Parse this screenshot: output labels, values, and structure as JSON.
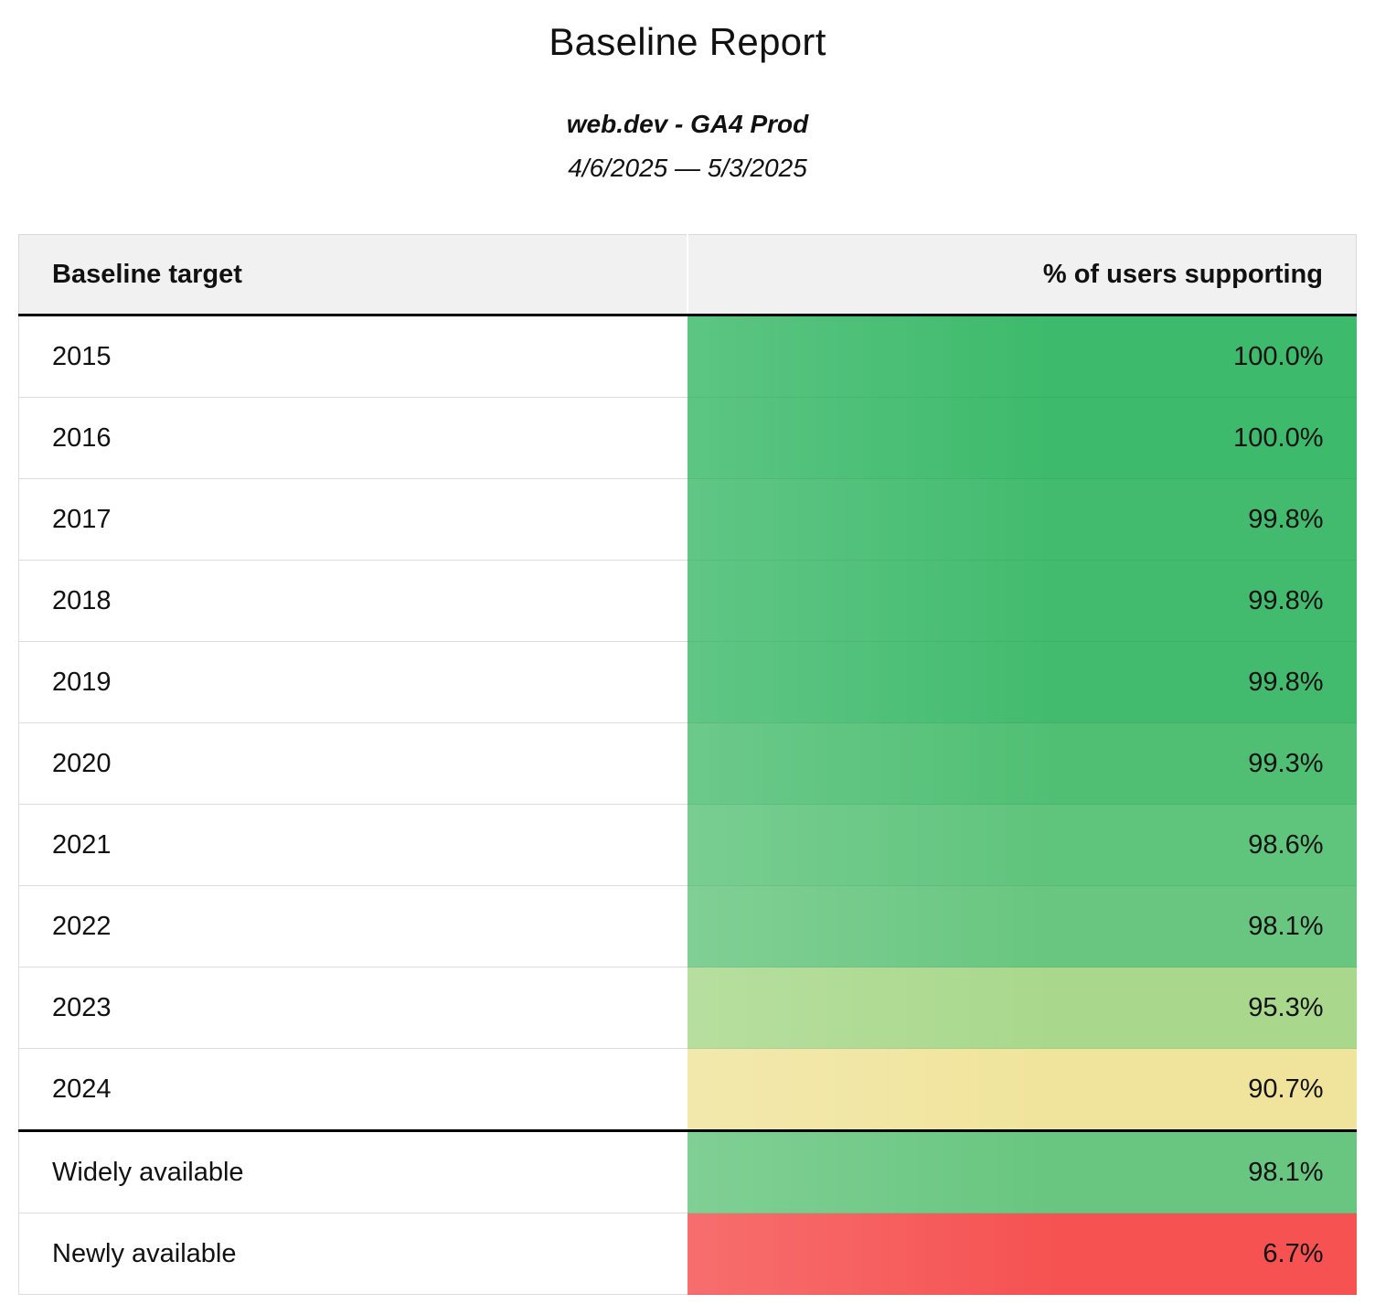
{
  "report": {
    "title": "Baseline Report",
    "subtitle": "web.dev - GA4 Prod",
    "date_range": "4/6/2025 — 5/3/2025"
  },
  "table": {
    "columns": [
      {
        "label": "Baseline target",
        "align": "left"
      },
      {
        "label": "% of users supporting",
        "align": "right"
      }
    ],
    "rows": [
      {
        "target": "2015",
        "value": "100.0%",
        "color": "#3dba6b",
        "section": "years"
      },
      {
        "target": "2016",
        "value": "100.0%",
        "color": "#3dba6b",
        "section": "years"
      },
      {
        "target": "2017",
        "value": "99.8%",
        "color": "#42bb6e",
        "section": "years"
      },
      {
        "target": "2018",
        "value": "99.8%",
        "color": "#42bb6e",
        "section": "years"
      },
      {
        "target": "2019",
        "value": "99.8%",
        "color": "#42bb6e",
        "section": "years"
      },
      {
        "target": "2020",
        "value": "99.3%",
        "color": "#50bf74",
        "section": "years"
      },
      {
        "target": "2021",
        "value": "98.6%",
        "color": "#5fc47c",
        "section": "years"
      },
      {
        "target": "2022",
        "value": "98.1%",
        "color": "#68c680",
        "section": "years"
      },
      {
        "target": "2023",
        "value": "95.3%",
        "color": "#a9d88c",
        "section": "years"
      },
      {
        "target": "2024",
        "value": "90.7%",
        "color": "#f0e49c",
        "section": "years"
      },
      {
        "target": "Widely available",
        "value": "98.1%",
        "color": "#68c680",
        "section": "summary"
      },
      {
        "target": "Newly available",
        "value": "6.7%",
        "color": "#f65252",
        "section": "summary"
      }
    ],
    "divider_color": "#000000",
    "header_background": "#f1f1f1"
  },
  "chart_data": {
    "type": "table",
    "title": "Baseline Report",
    "subtitle": "web.dev - GA4 Prod",
    "date_range": "4/6/2025 — 5/3/2025",
    "columns": [
      "Baseline target",
      "% of users supporting"
    ],
    "rows": [
      [
        "2015",
        100.0
      ],
      [
        "2016",
        100.0
      ],
      [
        "2017",
        99.8
      ],
      [
        "2018",
        99.8
      ],
      [
        "2019",
        99.8
      ],
      [
        "2020",
        99.3
      ],
      [
        "2021",
        98.6
      ],
      [
        "2022",
        98.1
      ],
      [
        "2023",
        95.3
      ],
      [
        "2024",
        90.7
      ],
      [
        "Widely available",
        98.1
      ],
      [
        "Newly available",
        6.7
      ]
    ],
    "value_unit": "%",
    "color_scale": "green-to-red by support percentage"
  }
}
